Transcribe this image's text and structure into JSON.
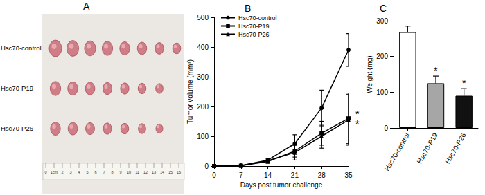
{
  "panel_a": {
    "title": "A",
    "rows": [
      {
        "label": "Hsc70-control",
        "count": 8
      },
      {
        "label": "Hsc70-P19",
        "count": 7
      },
      {
        "label": "Hsc70-P26",
        "count": 7
      }
    ],
    "ruler_labels": [
      "0",
      "1cm",
      "2",
      "3",
      "4",
      "5",
      "6",
      "7",
      "8",
      "9",
      "10",
      "11",
      "12",
      "13",
      "14",
      "15",
      "16"
    ]
  },
  "chart_data": [
    {
      "type": "line",
      "title": "B",
      "x_label": "Days post tumor challenge",
      "y_label": "Tumor volume (mm³)",
      "x": [
        0,
        7,
        14,
        21,
        28,
        35
      ],
      "xlim": [
        0,
        35
      ],
      "xticks": [
        0,
        7,
        14,
        21,
        28,
        35
      ],
      "ylim": [
        0,
        500
      ],
      "yticks": [
        0,
        100,
        200,
        300,
        400,
        500
      ],
      "legend": "upper left",
      "grid": false,
      "series": [
        {
          "name": "Hsc70-control",
          "color": "#000000",
          "marker": "circle",
          "line_style": "solid",
          "values": [
            0,
            2,
            20,
            75,
            195,
            390
          ],
          "errors": [
            0,
            1,
            5,
            30,
            60,
            55
          ]
        },
        {
          "name": "Hsc70-P19",
          "color": "#000000",
          "marker": "rect",
          "line_style": "solid",
          "values": [
            0,
            1,
            15,
            50,
            110,
            160
          ],
          "errors": [
            0,
            1,
            5,
            20,
            40,
            85
          ],
          "annotation": "*"
        },
        {
          "name": "Hsc70-P26",
          "color": "#000000",
          "marker": "triangle",
          "line_style": "solid",
          "values": [
            0,
            1,
            18,
            45,
            100,
            155
          ],
          "errors": [
            0,
            1,
            8,
            25,
            40,
            85
          ],
          "annotation": "*"
        }
      ]
    },
    {
      "type": "bar",
      "title": "C",
      "y_label": "Weight (mg)",
      "categories": [
        "Hsc70-control",
        "Hsc70-P19",
        "Hsc70-P26"
      ],
      "values": [
        268,
        125,
        90
      ],
      "errors": [
        17,
        20,
        20
      ],
      "colors": [
        "#ffffff",
        "#a6a6a6",
        "#111111"
      ],
      "annotations": [
        null,
        "*",
        "*"
      ],
      "ylim": [
        0,
        300
      ],
      "yticks": [
        0,
        100,
        200,
        300
      ],
      "grid": false
    }
  ]
}
